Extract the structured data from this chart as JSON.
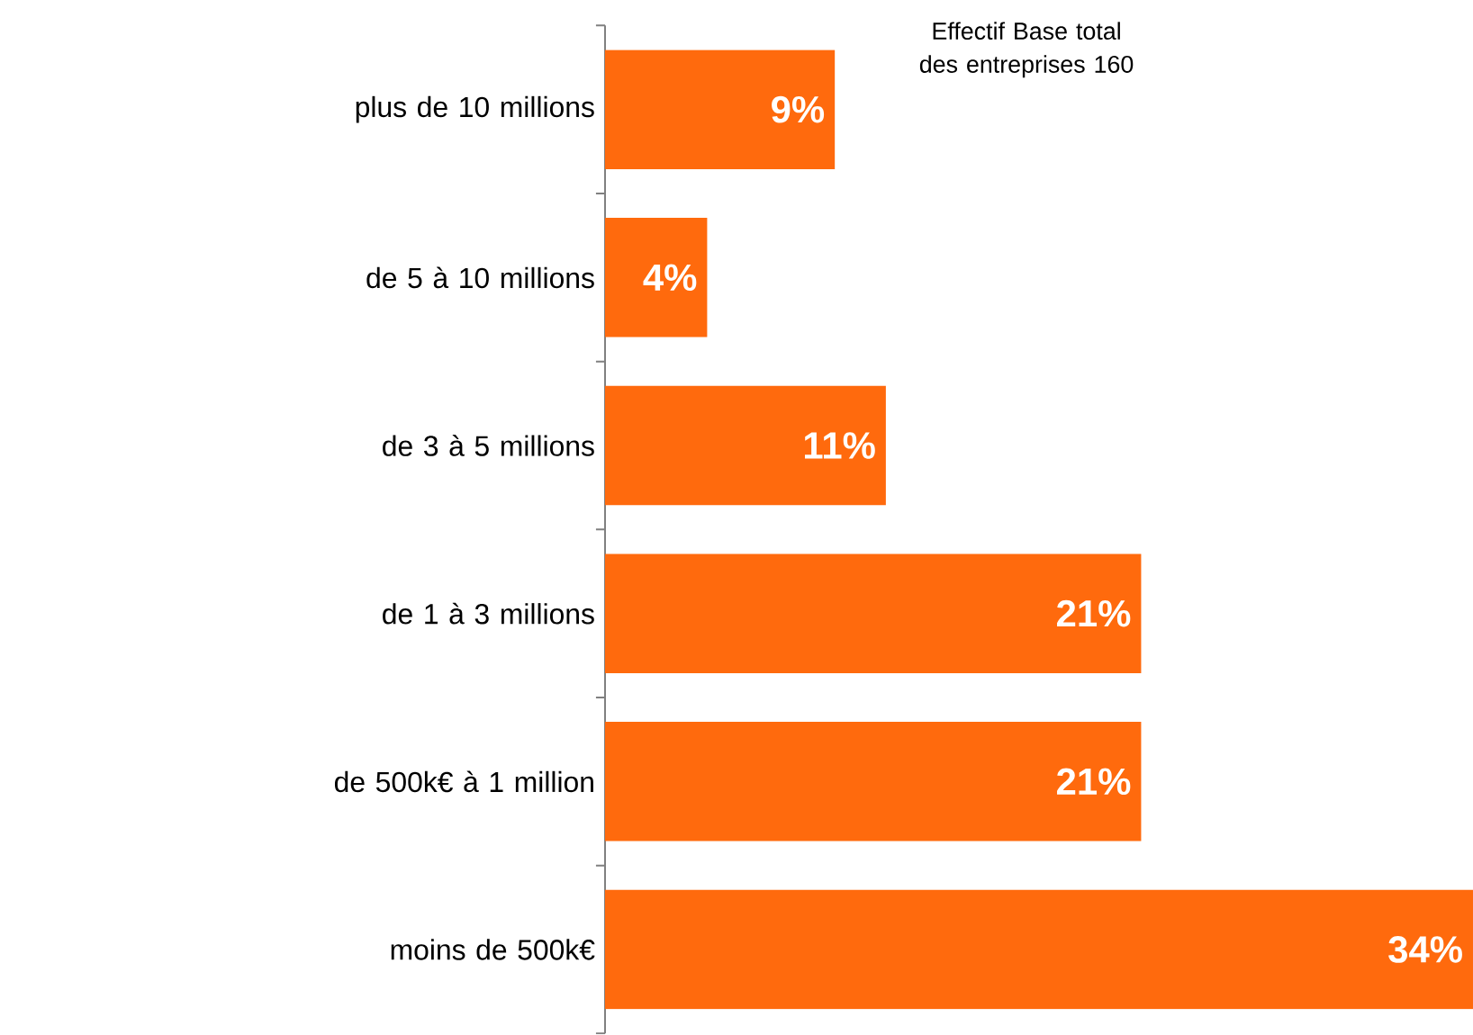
{
  "chart_data": {
    "type": "bar",
    "orientation": "horizontal",
    "categories": [
      "plus de 10 millions",
      "de 5 à 10 millions",
      "de 3 à 5 millions",
      "de 1 à 3 millions",
      "de 500k€ à 1 million",
      "moins de 500k€"
    ],
    "values": [
      9,
      4,
      11,
      21,
      21,
      34
    ],
    "value_labels": [
      "9%",
      "4%",
      "11%",
      "21%",
      "21%",
      "34%"
    ],
    "color": "#ff6a0d",
    "annotations": [
      "Effectif Base total des entreprises 160"
    ]
  }
}
